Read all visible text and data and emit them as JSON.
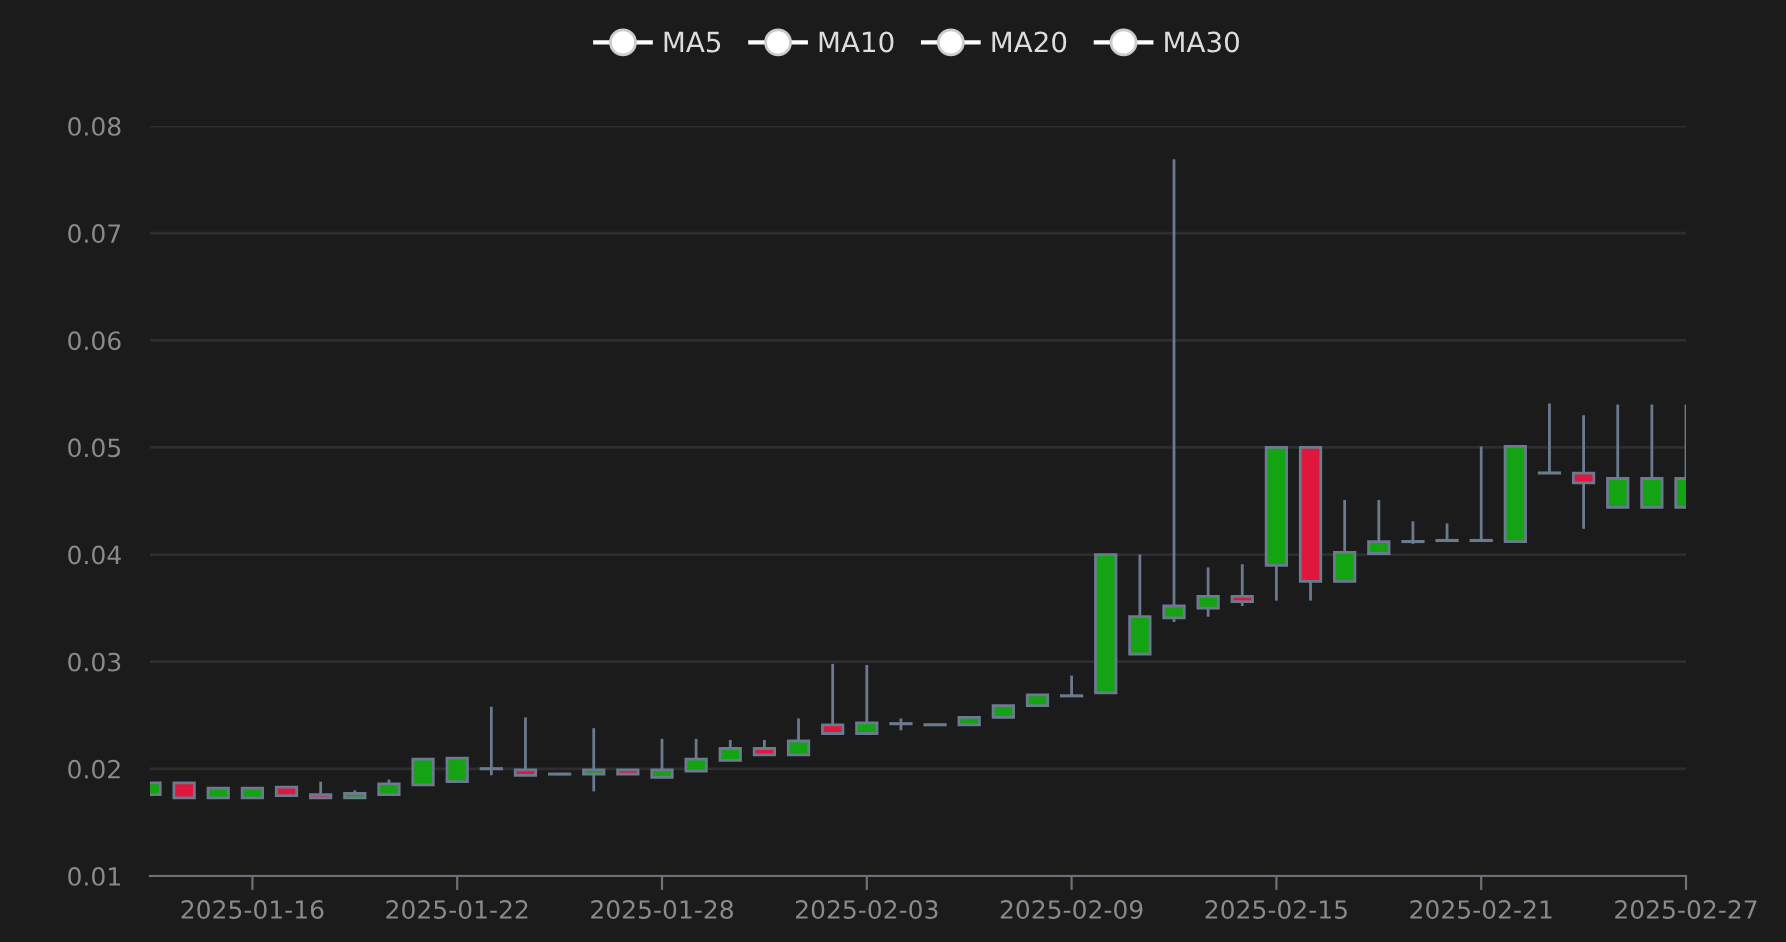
{
  "chart_data": {
    "type": "candlestick",
    "x": [
      "2025-01-13",
      "2025-01-14",
      "2025-01-15",
      "2025-01-16",
      "2025-01-17",
      "2025-01-18",
      "2025-01-19",
      "2025-01-20",
      "2025-01-21",
      "2025-01-22",
      "2025-01-23",
      "2025-01-24",
      "2025-01-25",
      "2025-01-26",
      "2025-01-27",
      "2025-01-28",
      "2025-01-29",
      "2025-01-30",
      "2025-01-31",
      "2025-02-01",
      "2025-02-02",
      "2025-02-03",
      "2025-02-04",
      "2025-02-05",
      "2025-02-06",
      "2025-02-07",
      "2025-02-08",
      "2025-02-09",
      "2025-02-10",
      "2025-02-11",
      "2025-02-12",
      "2025-02-13",
      "2025-02-14",
      "2025-02-15",
      "2025-02-16",
      "2025-02-17",
      "2025-02-18",
      "2025-02-19",
      "2025-02-20",
      "2025-02-21",
      "2025-02-22",
      "2025-02-23",
      "2025-02-24",
      "2025-02-25",
      "2025-02-26",
      "2025-02-27"
    ],
    "ohlc": [
      [
        0.0176,
        0.0187,
        0.0176,
        0.0187
      ],
      [
        0.0187,
        0.0187,
        0.0173,
        0.0173
      ],
      [
        0.0173,
        0.0182,
        0.0173,
        0.0182
      ],
      [
        0.0173,
        0.0182,
        0.0173,
        0.0182
      ],
      [
        0.0183,
        0.0183,
        0.0175,
        0.0175
      ],
      [
        0.0176,
        0.0188,
        0.0173,
        0.0173
      ],
      [
        0.0173,
        0.018,
        0.0173,
        0.0177
      ],
      [
        0.0176,
        0.019,
        0.0176,
        0.0186
      ],
      [
        0.0185,
        0.0209,
        0.0185,
        0.0209
      ],
      [
        0.0188,
        0.021,
        0.0188,
        0.021
      ],
      [
        0.02,
        0.0258,
        0.0194,
        0.02
      ],
      [
        0.0199,
        0.0248,
        0.0194,
        0.0194
      ],
      [
        0.0195,
        0.0196,
        0.0194,
        0.0195
      ],
      [
        0.0195,
        0.0238,
        0.0179,
        0.0199
      ],
      [
        0.0199,
        0.0199,
        0.0195,
        0.0195
      ],
      [
        0.0192,
        0.0228,
        0.0192,
        0.0199
      ],
      [
        0.0198,
        0.0228,
        0.0198,
        0.0209
      ],
      [
        0.0208,
        0.0227,
        0.0208,
        0.0219
      ],
      [
        0.0219,
        0.0227,
        0.0212,
        0.0213
      ],
      [
        0.0213,
        0.0247,
        0.0213,
        0.0226
      ],
      [
        0.0241,
        0.0298,
        0.0233,
        0.0233
      ],
      [
        0.0233,
        0.0297,
        0.0233,
        0.0243
      ],
      [
        0.0242,
        0.0247,
        0.0236,
        0.0242
      ],
      [
        0.0241,
        0.0242,
        0.0241,
        0.0241
      ],
      [
        0.0241,
        0.0248,
        0.0241,
        0.0248
      ],
      [
        0.0248,
        0.0259,
        0.0248,
        0.0259
      ],
      [
        0.0259,
        0.0269,
        0.0259,
        0.0269
      ],
      [
        0.0268,
        0.0287,
        0.0268,
        0.0268
      ],
      [
        0.0271,
        0.04,
        0.0271,
        0.04
      ],
      [
        0.0307,
        0.04,
        0.0307,
        0.0342
      ],
      [
        0.0341,
        0.0769,
        0.0337,
        0.0352
      ],
      [
        0.035,
        0.0388,
        0.0342,
        0.0361
      ],
      [
        0.0361,
        0.0391,
        0.0352,
        0.0356
      ],
      [
        0.039,
        0.05,
        0.0357,
        0.05
      ],
      [
        0.05,
        0.05,
        0.0357,
        0.0375
      ],
      [
        0.0375,
        0.0451,
        0.0375,
        0.0402
      ],
      [
        0.0401,
        0.0451,
        0.0401,
        0.0412
      ],
      [
        0.0412,
        0.0431,
        0.041,
        0.0412
      ],
      [
        0.0413,
        0.0429,
        0.0413,
        0.0413
      ],
      [
        0.0413,
        0.0501,
        0.0413,
        0.0413
      ],
      [
        0.0412,
        0.0501,
        0.0412,
        0.0501
      ],
      [
        0.0476,
        0.0541,
        0.0476,
        0.0476
      ],
      [
        0.0476,
        0.053,
        0.0424,
        0.0467
      ],
      [
        0.0444,
        0.054,
        0.0444,
        0.0471
      ],
      [
        0.0444,
        0.054,
        0.0444,
        0.0471
      ],
      [
        0.0444,
        0.054,
        0.0444,
        0.0471
      ]
    ],
    "colors": [
      "#13a313",
      "#e0173c",
      "#13a313",
      "#13a313",
      "#e0173c",
      "#e0173c",
      "#13a313",
      "#13a313",
      "#13a313",
      "#13a313",
      "#13a313",
      "#e0173c",
      "#13a313",
      "#13a313",
      "#e0173c",
      "#13a313",
      "#13a313",
      "#13a313",
      "#e0173c",
      "#13a313",
      "#e0173c",
      "#13a313",
      "#13a313",
      "#13a313",
      "#13a313",
      "#13a313",
      "#13a313",
      "#13a313",
      "#13a313",
      "#13a313",
      "#13a313",
      "#13a313",
      "#e0173c",
      "#13a313",
      "#e0173c",
      "#13a313",
      "#13a313",
      "#13a313",
      "#13a313",
      "#13a313",
      "#13a313",
      "#13a313",
      "#e0173c",
      "#13a313",
      "#13a313",
      "#13a313"
    ],
    "series": [
      {
        "name": "MA5",
        "type": "line",
        "color": "#ffffff",
        "values": [
          null,
          null,
          null,
          null,
          null,
          null,
          null,
          null,
          null,
          null,
          null,
          null,
          null,
          null,
          null,
          null,
          null,
          null,
          null,
          null,
          null,
          null,
          null,
          null,
          null,
          null,
          null,
          null,
          null,
          null,
          null,
          null,
          null,
          null,
          null,
          null,
          null,
          null,
          null,
          null,
          null,
          null,
          null,
          null,
          null,
          null
        ]
      },
      {
        "name": "MA10",
        "type": "line",
        "color": "#ffffff",
        "values": [
          null,
          null,
          null,
          null,
          null,
          null,
          null,
          null,
          null,
          null,
          null,
          null,
          null,
          null,
          null,
          null,
          null,
          null,
          null,
          null,
          null,
          null,
          null,
          null,
          null,
          null,
          null,
          null,
          null,
          null,
          null,
          null,
          null,
          null,
          null,
          null,
          null,
          null,
          null,
          null,
          null,
          null,
          null,
          null,
          null,
          null
        ]
      },
      {
        "name": "MA20",
        "type": "line",
        "color": "#ffffff",
        "values": [
          null,
          null,
          null,
          null,
          null,
          null,
          null,
          null,
          null,
          null,
          null,
          null,
          null,
          null,
          null,
          null,
          null,
          null,
          null,
          null,
          null,
          null,
          null,
          null,
          null,
          null,
          null,
          null,
          null,
          null,
          null,
          null,
          null,
          null,
          null,
          null,
          null,
          null,
          null,
          null,
          null,
          null,
          null,
          null,
          null,
          null
        ]
      },
      {
        "name": "MA30",
        "type": "line",
        "color": "#ffffff",
        "values": [
          null,
          null,
          null,
          null,
          null,
          null,
          null,
          null,
          null,
          null,
          null,
          null,
          null,
          null,
          null,
          null,
          null,
          null,
          null,
          null,
          null,
          null,
          null,
          null,
          null,
          null,
          null,
          null,
          null,
          null,
          null,
          null,
          null,
          null,
          null,
          null,
          null,
          null,
          null,
          null,
          null,
          null,
          null,
          null,
          null,
          null
        ]
      }
    ],
    "marker": "circle",
    "xlim": [
      "2025-01-13",
      "2025-02-27"
    ],
    "xticks": [
      "2025-01-16",
      "2025-01-22",
      "2025-01-28",
      "2025-02-03",
      "2025-02-09",
      "2025-02-15",
      "2025-02-21",
      "2025-02-27"
    ],
    "ylim": [
      0.01,
      0.08
    ],
    "yticks": [
      0.01,
      0.02,
      0.03,
      0.04,
      0.05,
      0.06,
      0.07,
      0.08
    ],
    "grid": "y",
    "legend": "top"
  }
}
